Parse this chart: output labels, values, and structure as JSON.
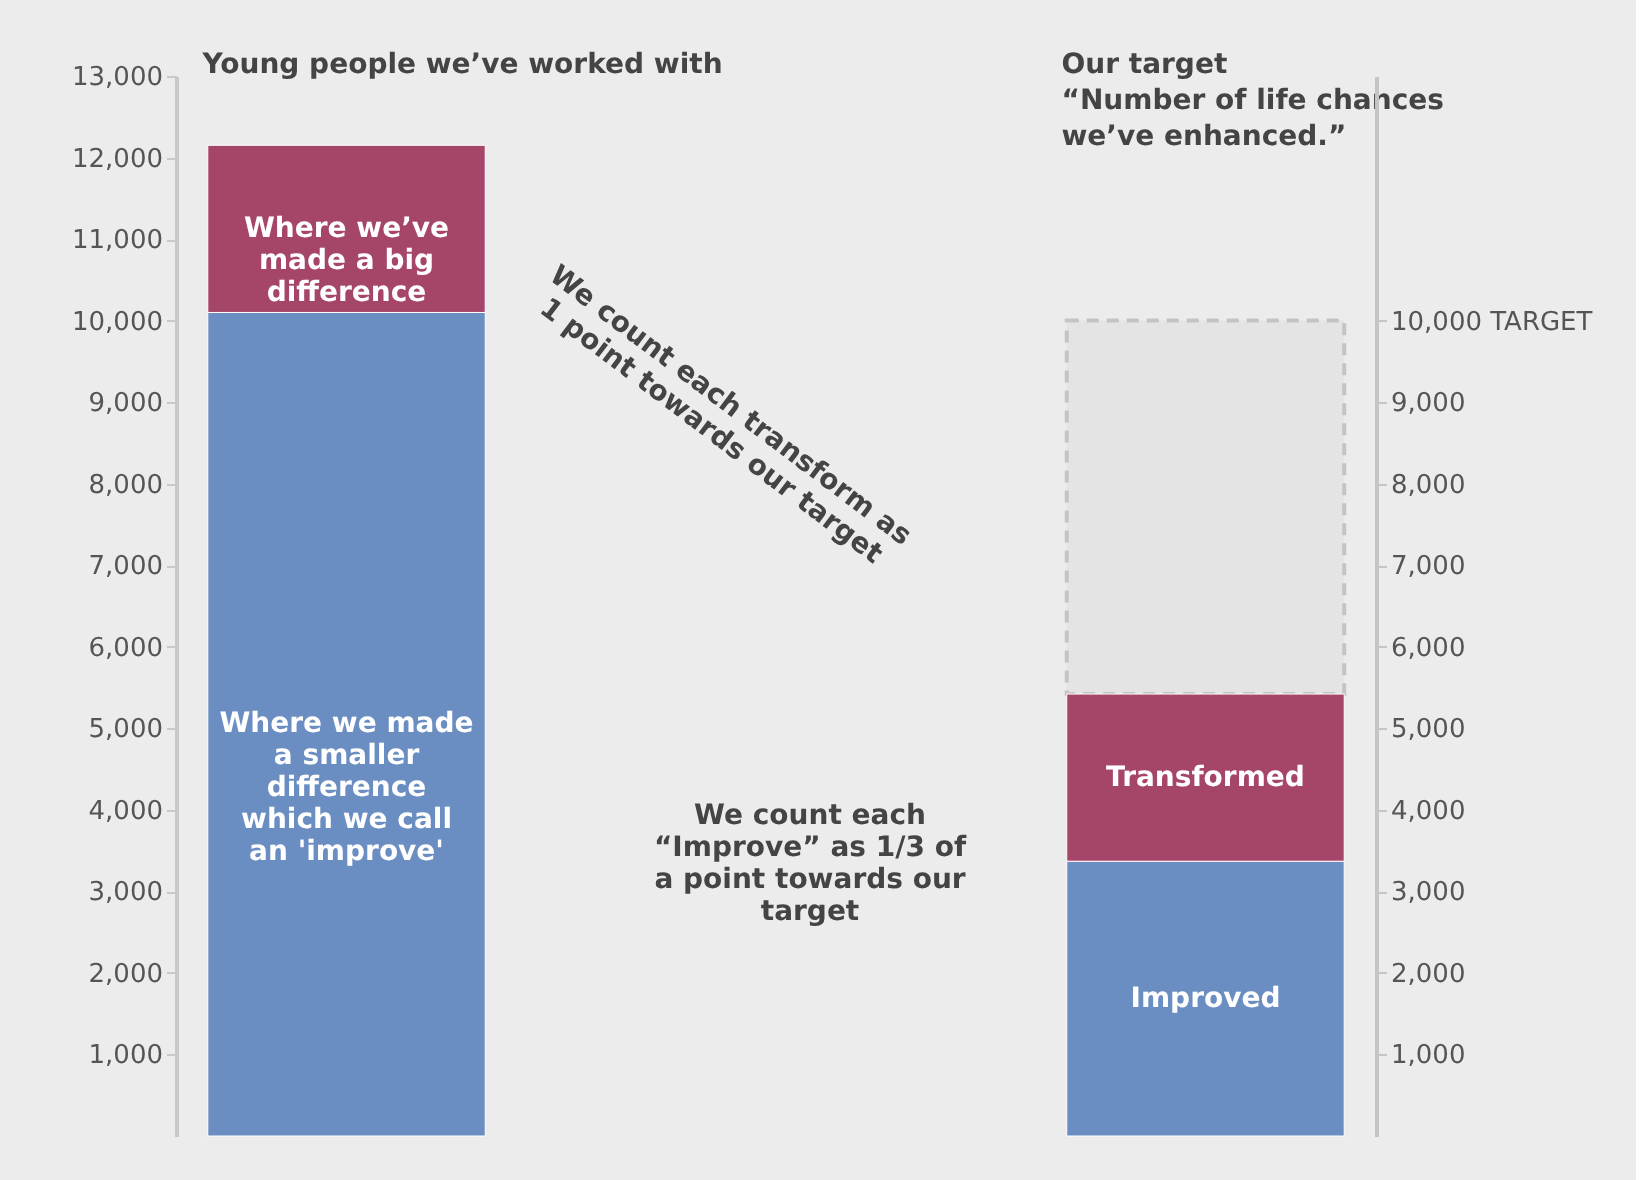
{
  "chart_data": {
    "type": "bar",
    "stacked": true,
    "categories": [
      "Young people we’ve worked with",
      "Our target\n“Number of life chances\nwe’ve enhanced.”"
    ],
    "series": [
      {
        "color": "#6b8ec2",
        "values": [
          10100,
          3370
        ],
        "value_labels": [
          "Where we made a smaller difference which we call an 'improve'",
          "Improved"
        ]
      },
      {
        "color": "#a6456a",
        "values": [
          2050,
          2050
        ],
        "value_labels": [
          "Where we’ve made a big difference",
          "Transformed"
        ]
      }
    ],
    "ylim": [
      0,
      13000
    ],
    "yticks": [
      {
        "value": 1000,
        "label": "1,000"
      },
      {
        "value": 2000,
        "label": "2,000"
      },
      {
        "value": 3000,
        "label": "3,000"
      },
      {
        "value": 4000,
        "label": "4,000"
      },
      {
        "value": 5000,
        "label": "5,000"
      },
      {
        "value": 6000,
        "label": "6,000"
      },
      {
        "value": 7000,
        "label": "7,000"
      },
      {
        "value": 8000,
        "label": "8,000"
      },
      {
        "value": 9000,
        "label": "9,000"
      },
      {
        "value": 10000,
        "label": "10,000"
      },
      {
        "value": 11000,
        "label": "11,000"
      },
      {
        "value": 12000,
        "label": "12,000"
      },
      {
        "value": 13000,
        "label": "13,000"
      }
    ],
    "y2lim": [
      0,
      13000
    ],
    "y2ticks": [
      {
        "value": 1000,
        "label": "1,000"
      },
      {
        "value": 2000,
        "label": "2,000"
      },
      {
        "value": 3000,
        "label": "3,000"
      },
      {
        "value": 4000,
        "label": "4,000"
      },
      {
        "value": 5000,
        "label": "5,000"
      },
      {
        "value": 6000,
        "label": "6,000"
      },
      {
        "value": 7000,
        "label": "7,000"
      },
      {
        "value": 8000,
        "label": "8,000"
      },
      {
        "value": 9000,
        "label": "9,000"
      },
      {
        "value": 10000,
        "label": "10,000 TARGET"
      }
    ],
    "bands": [
      {
        "axis": "y2",
        "from": 5420,
        "to": 10000,
        "color": "#e4e4e4"
      }
    ],
    "annotations": [
      "We count each transform as 1 point towards our target",
      "We count each “Improve” as 1/3 of a point towards our target"
    ],
    "grid": false
  }
}
